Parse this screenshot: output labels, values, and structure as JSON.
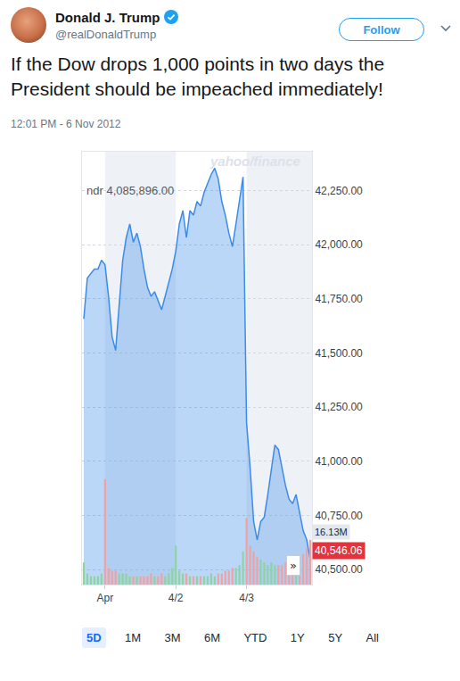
{
  "tweet": {
    "name": "Donald J. Trump",
    "handle": "@realDonaldTrump",
    "button": "Follow",
    "text": "If the Dow drops 1,000 points in two days the President should be impeached immediately!",
    "timestamp": "12:01 PM - 6 Nov 2012"
  },
  "chart_data": {
    "type": "area",
    "watermark": "yahoo/finance",
    "header_text": "ndr 4,085,896.00",
    "categories": [
      null,
      null,
      null,
      null,
      null,
      null,
      "Apr",
      null,
      null,
      null,
      null,
      null,
      null,
      null,
      null,
      null,
      null,
      null,
      null,
      null,
      null,
      null,
      null,
      null,
      null,
      null,
      "4/2",
      null,
      null,
      null,
      null,
      null,
      null,
      null,
      null,
      null,
      null,
      null,
      null,
      null,
      null,
      null,
      null,
      null,
      null,
      null,
      "4/3",
      null,
      null,
      null,
      null,
      null,
      null,
      null,
      null,
      null,
      null,
      null,
      null,
      null,
      null,
      null,
      null,
      null,
      null
    ],
    "series": [
      {
        "type": "area",
        "color": "#3d8be8",
        "last_label": "40,546.06",
        "values": [
          41658,
          41846,
          41867,
          41888,
          41888,
          41929,
          41908,
          41762,
          41575,
          41512,
          41721,
          41929,
          42033,
          42096,
          42012,
          42054,
          41992,
          41888,
          41804,
          41762,
          41783,
          41742,
          41700,
          41762,
          41825,
          41888,
          41971,
          42096,
          42158,
          42033,
          42158,
          42137,
          42200,
          42179,
          42242,
          42283,
          42325,
          42354,
          42304,
          42200,
          42137,
          42054,
          41992,
          42096,
          42200,
          42313,
          41179,
          40971,
          40721,
          40637,
          40721,
          40742,
          40846,
          40971,
          41075,
          41054,
          40971,
          40888,
          40825,
          40804,
          40846,
          40762,
          40679,
          40637,
          40546.06
        ]
      },
      {
        "type": "bar",
        "axis": "y2",
        "last_label": "16.13M",
        "values": [
          8,
          4,
          3,
          3,
          3,
          4,
          38,
          6,
          5,
          5,
          4,
          4,
          4,
          3,
          3,
          3,
          3,
          3,
          3,
          4,
          3,
          3,
          4,
          3,
          4,
          6,
          14,
          5,
          4,
          4,
          3,
          3,
          3,
          3,
          3,
          3,
          4,
          3,
          4,
          4,
          5,
          5,
          6,
          6,
          7,
          12,
          24,
          14,
          12,
          10,
          9,
          8,
          7,
          8,
          7,
          7,
          7,
          8,
          8,
          8,
          9,
          10,
          11,
          13,
          16.13
        ],
        "colors": [
          "#8fd3a0",
          "#8fd3a0",
          "#8fd3a0",
          "#8fd3a0",
          "#8fd3a0",
          "#8fd3a0",
          "#f2a0a0",
          "#f2a0a0",
          "#f2a0a0",
          "#f2a0a0",
          "#8fd3a0",
          "#8fd3a0",
          "#8fd3a0",
          "#8fd3a0",
          "#f2a0a0",
          "#8fd3a0",
          "#f2a0a0",
          "#f2a0a0",
          "#f2a0a0",
          "#f2a0a0",
          "#8fd3a0",
          "#f2a0a0",
          "#f2a0a0",
          "#8fd3a0",
          "#8fd3a0",
          "#8fd3a0",
          "#8fd3a0",
          "#8fd3a0",
          "#8fd3a0",
          "#f2a0a0",
          "#8fd3a0",
          "#f2a0a0",
          "#8fd3a0",
          "#f2a0a0",
          "#8fd3a0",
          "#8fd3a0",
          "#8fd3a0",
          "#8fd3a0",
          "#f2a0a0",
          "#f2a0a0",
          "#f2a0a0",
          "#f2a0a0",
          "#f2a0a0",
          "#8fd3a0",
          "#8fd3a0",
          "#8fd3a0",
          "#f2a0a0",
          "#f2a0a0",
          "#f2a0a0",
          "#f2a0a0",
          "#8fd3a0",
          "#8fd3a0",
          "#8fd3a0",
          "#8fd3a0",
          "#8fd3a0",
          "#f2a0a0",
          "#f2a0a0",
          "#f2a0a0",
          "#f2a0a0",
          "#f2a0a0",
          "#8fd3a0",
          "#f2a0a0",
          "#f2a0a0",
          "#f2a0a0",
          "#f2a0a0"
        ]
      }
    ],
    "ylim": [
      40430,
      42430
    ],
    "yticks": [
      {
        "value": 40500,
        "label": "40,500.00"
      },
      {
        "value": 40750,
        "label": "40,750.00"
      },
      {
        "value": 41000,
        "label": "41,000.00"
      },
      {
        "value": 41250,
        "label": "41,250.00"
      },
      {
        "value": 41500,
        "label": "41,500.00"
      },
      {
        "value": 41750,
        "label": "41,750.00"
      },
      {
        "value": 42000,
        "label": "42,000.00"
      },
      {
        "value": 42250,
        "label": "42,250.00"
      }
    ],
    "y2lim": [
      0,
      156
    ],
    "grid": true,
    "scroll_button": "»",
    "range_buttons": [
      "5D",
      "1M",
      "3M",
      "6M",
      "YTD",
      "1Y",
      "5Y",
      "All"
    ],
    "selected_range": "5D"
  }
}
